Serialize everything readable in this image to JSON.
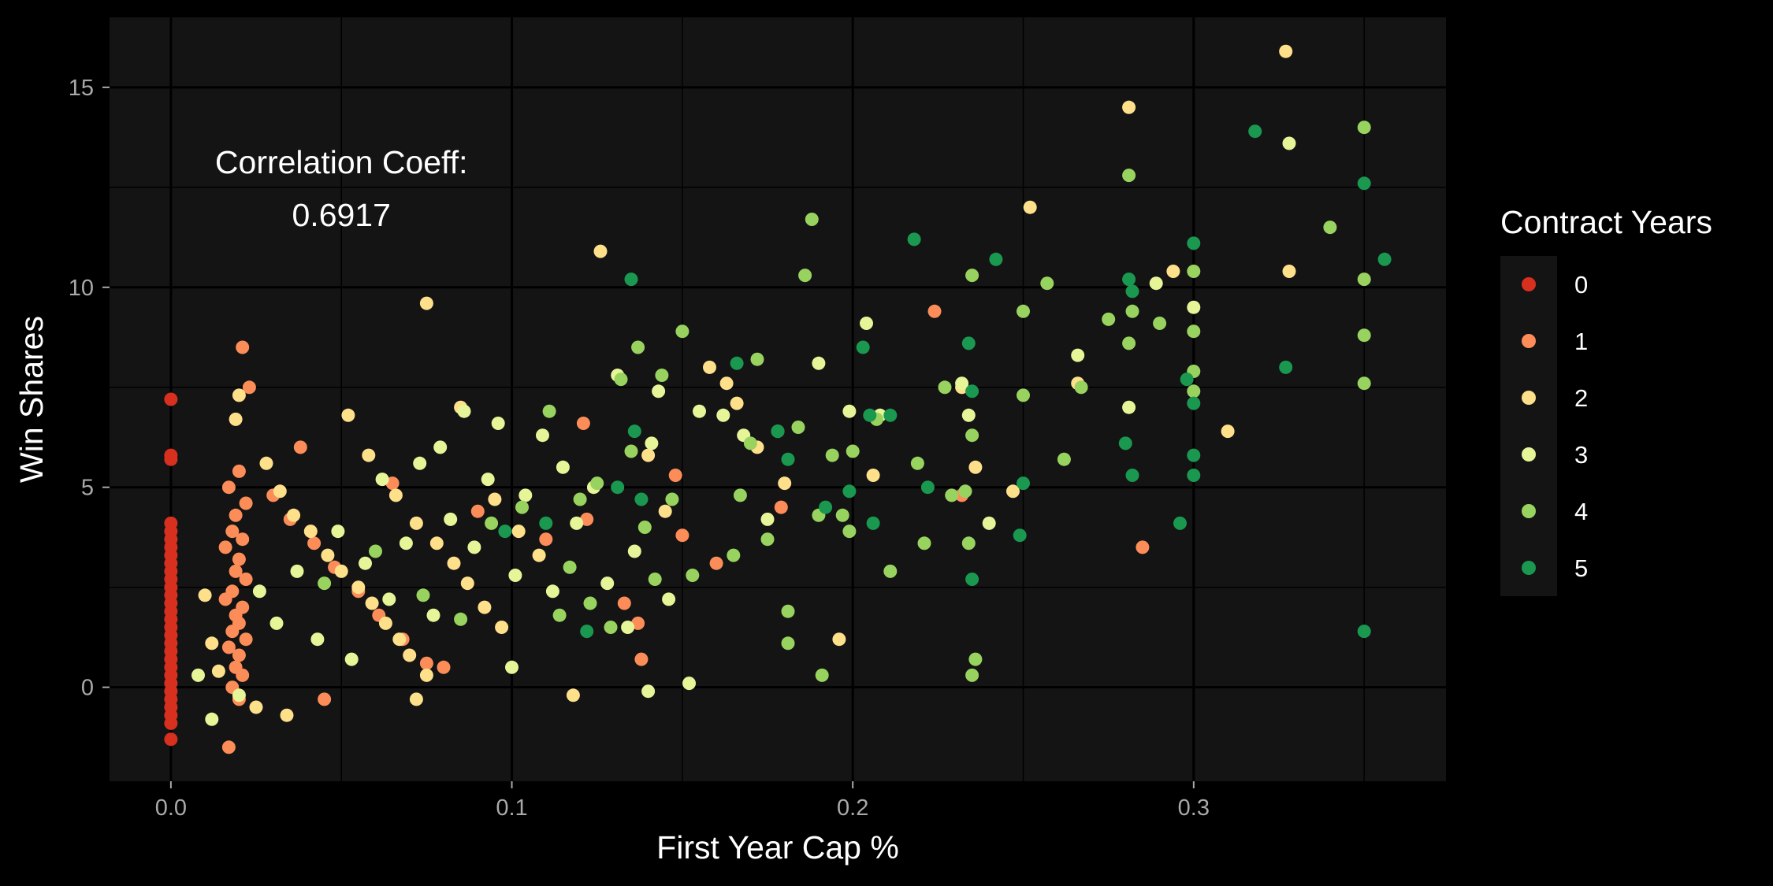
{
  "chart_data": {
    "type": "scatter",
    "title": "",
    "xlabel": "First Year Cap %",
    "ylabel": "Win Shares",
    "xlim": [
      -0.018,
      0.374
    ],
    "ylim": [
      -2.35,
      16.75
    ],
    "x_ticks": [
      0.0,
      0.1,
      0.2,
      0.3
    ],
    "x_tick_labels": [
      "0.0",
      "0.1",
      "0.2",
      "0.3"
    ],
    "y_ticks": [
      0,
      5,
      10,
      15
    ],
    "y_tick_labels": [
      "0",
      "5",
      "10",
      "15"
    ],
    "grid": true,
    "annotation": {
      "line1": "Correlation Coeff:",
      "line2": "0.6917",
      "x": 0.05,
      "y": 12.4
    },
    "legend": {
      "title": "Contract Years",
      "position": "right",
      "entries": [
        "0",
        "1",
        "2",
        "3",
        "4",
        "5"
      ]
    },
    "colors": {
      "panel_bg": "#141414",
      "page_bg": "#000000",
      "grid": "#000000",
      "0": "#d7301f",
      "1": "#fc8d59",
      "2": "#fee08b",
      "3": "#e6f598",
      "4": "#99d35f",
      "5": "#1a9850"
    },
    "series": [
      {
        "name": "0",
        "points": [
          [
            0,
            7.2
          ],
          [
            0,
            5.8
          ],
          [
            0,
            5.7
          ],
          [
            0,
            4.1
          ],
          [
            0,
            3.9
          ],
          [
            0,
            3.7
          ],
          [
            0,
            3.5
          ],
          [
            0,
            3.3
          ],
          [
            0,
            3.1
          ],
          [
            0,
            2.9
          ],
          [
            0,
            2.7
          ],
          [
            0,
            2.5
          ],
          [
            0,
            2.3
          ],
          [
            0,
            2.1
          ],
          [
            0,
            1.9
          ],
          [
            0,
            1.7
          ],
          [
            0,
            1.5
          ],
          [
            0,
            1.3
          ],
          [
            0,
            1.1
          ],
          [
            0,
            0.9
          ],
          [
            0,
            0.7
          ],
          [
            0,
            0.5
          ],
          [
            0,
            0.3
          ],
          [
            0,
            0.1
          ],
          [
            0,
            -0.1
          ],
          [
            0,
            -0.3
          ],
          [
            0,
            -0.5
          ],
          [
            0,
            -0.7
          ],
          [
            0,
            -0.9
          ],
          [
            0,
            -1.3
          ]
        ]
      },
      {
        "name": "1",
        "points": [
          [
            0.021,
            8.5
          ],
          [
            0.023,
            7.5
          ],
          [
            0.02,
            5.4
          ],
          [
            0.017,
            5.0
          ],
          [
            0.022,
            4.6
          ],
          [
            0.019,
            4.3
          ],
          [
            0.018,
            3.9
          ],
          [
            0.021,
            3.7
          ],
          [
            0.016,
            3.5
          ],
          [
            0.02,
            3.2
          ],
          [
            0.019,
            2.9
          ],
          [
            0.022,
            2.7
          ],
          [
            0.018,
            2.4
          ],
          [
            0.016,
            2.2
          ],
          [
            0.021,
            2.0
          ],
          [
            0.019,
            1.8
          ],
          [
            0.02,
            1.6
          ],
          [
            0.018,
            1.4
          ],
          [
            0.022,
            1.2
          ],
          [
            0.017,
            1.0
          ],
          [
            0.02,
            0.8
          ],
          [
            0.019,
            0.5
          ],
          [
            0.021,
            0.3
          ],
          [
            0.018,
            0.0
          ],
          [
            0.02,
            -0.3
          ],
          [
            0.017,
            -1.5
          ],
          [
            0.03,
            4.8
          ],
          [
            0.035,
            4.2
          ],
          [
            0.042,
            3.6
          ],
          [
            0.048,
            3.0
          ],
          [
            0.055,
            2.4
          ],
          [
            0.061,
            1.8
          ],
          [
            0.068,
            1.2
          ],
          [
            0.075,
            0.6
          ],
          [
            0.08,
            0.5
          ],
          [
            0.045,
            -0.3
          ],
          [
            0.038,
            6.0
          ],
          [
            0.065,
            5.1
          ],
          [
            0.09,
            4.4
          ],
          [
            0.11,
            3.7
          ],
          [
            0.122,
            4.2
          ],
          [
            0.121,
            6.6
          ],
          [
            0.133,
            2.1
          ],
          [
            0.137,
            1.6
          ],
          [
            0.138,
            0.7
          ],
          [
            0.148,
            5.3
          ],
          [
            0.15,
            3.8
          ],
          [
            0.16,
            3.1
          ],
          [
            0.179,
            4.5
          ],
          [
            0.224,
            9.4
          ],
          [
            0.232,
            4.8
          ],
          [
            0.285,
            3.5
          ]
        ]
      },
      {
        "name": "2",
        "points": [
          [
            0.02,
            7.3
          ],
          [
            0.019,
            6.7
          ],
          [
            0.028,
            5.6
          ],
          [
            0.032,
            4.9
          ],
          [
            0.036,
            4.3
          ],
          [
            0.041,
            3.9
          ],
          [
            0.046,
            3.3
          ],
          [
            0.05,
            2.9
          ],
          [
            0.055,
            2.5
          ],
          [
            0.059,
            2.1
          ],
          [
            0.063,
            1.6
          ],
          [
            0.067,
            1.2
          ],
          [
            0.07,
            0.8
          ],
          [
            0.075,
            0.3
          ],
          [
            0.072,
            -0.3
          ],
          [
            0.034,
            -0.7
          ],
          [
            0.025,
            -0.5
          ],
          [
            0.052,
            6.8
          ],
          [
            0.058,
            5.8
          ],
          [
            0.066,
            4.8
          ],
          [
            0.072,
            4.1
          ],
          [
            0.078,
            3.6
          ],
          [
            0.083,
            3.1
          ],
          [
            0.087,
            2.6
          ],
          [
            0.092,
            2.0
          ],
          [
            0.097,
            1.5
          ],
          [
            0.085,
            7.0
          ],
          [
            0.075,
            9.6
          ],
          [
            0.095,
            4.7
          ],
          [
            0.102,
            3.9
          ],
          [
            0.108,
            3.3
          ],
          [
            0.118,
            -0.2
          ],
          [
            0.126,
            10.9
          ],
          [
            0.14,
            5.8
          ],
          [
            0.145,
            4.4
          ],
          [
            0.158,
            8.0
          ],
          [
            0.163,
            7.6
          ],
          [
            0.166,
            7.1
          ],
          [
            0.172,
            6.0
          ],
          [
            0.18,
            5.1
          ],
          [
            0.196,
            1.2
          ],
          [
            0.206,
            5.3
          ],
          [
            0.232,
            7.5
          ],
          [
            0.236,
            5.5
          ],
          [
            0.247,
            4.9
          ],
          [
            0.252,
            12.0
          ],
          [
            0.266,
            7.6
          ],
          [
            0.281,
            14.5
          ],
          [
            0.294,
            10.4
          ],
          [
            0.31,
            6.4
          ],
          [
            0.327,
            15.9
          ],
          [
            0.328,
            10.4
          ],
          [
            0.01,
            2.3
          ],
          [
            0.012,
            1.1
          ],
          [
            0.014,
            0.4
          ]
        ]
      },
      {
        "name": "3",
        "points": [
          [
            0.008,
            0.3
          ],
          [
            0.012,
            -0.8
          ],
          [
            0.026,
            2.4
          ],
          [
            0.031,
            1.6
          ],
          [
            0.037,
            2.9
          ],
          [
            0.043,
            1.2
          ],
          [
            0.049,
            3.9
          ],
          [
            0.053,
            0.7
          ],
          [
            0.057,
            3.1
          ],
          [
            0.062,
            5.2
          ],
          [
            0.064,
            2.2
          ],
          [
            0.069,
            3.6
          ],
          [
            0.073,
            5.6
          ],
          [
            0.077,
            1.8
          ],
          [
            0.079,
            6.0
          ],
          [
            0.082,
            4.2
          ],
          [
            0.086,
            6.9
          ],
          [
            0.089,
            3.5
          ],
          [
            0.093,
            5.2
          ],
          [
            0.096,
            6.6
          ],
          [
            0.1,
            0.5
          ],
          [
            0.101,
            2.8
          ],
          [
            0.104,
            4.8
          ],
          [
            0.109,
            6.3
          ],
          [
            0.112,
            2.4
          ],
          [
            0.115,
            5.5
          ],
          [
            0.119,
            4.1
          ],
          [
            0.124,
            5.0
          ],
          [
            0.128,
            2.6
          ],
          [
            0.131,
            7.8
          ],
          [
            0.134,
            1.5
          ],
          [
            0.136,
            3.4
          ],
          [
            0.141,
            6.1
          ],
          [
            0.143,
            7.4
          ],
          [
            0.146,
            2.2
          ],
          [
            0.152,
            0.1
          ],
          [
            0.155,
            6.9
          ],
          [
            0.162,
            6.8
          ],
          [
            0.168,
            6.3
          ],
          [
            0.175,
            4.2
          ],
          [
            0.19,
            8.1
          ],
          [
            0.199,
            6.9
          ],
          [
            0.204,
            9.1
          ],
          [
            0.208,
            6.8
          ],
          [
            0.232,
            7.6
          ],
          [
            0.234,
            6.8
          ],
          [
            0.24,
            4.1
          ],
          [
            0.266,
            8.3
          ],
          [
            0.281,
            7.0
          ],
          [
            0.289,
            10.1
          ],
          [
            0.3,
            9.5
          ],
          [
            0.328,
            13.6
          ],
          [
            0.14,
            -0.1
          ],
          [
            0.02,
            -0.2
          ]
        ]
      },
      {
        "name": "4",
        "points": [
          [
            0.045,
            2.6
          ],
          [
            0.06,
            3.4
          ],
          [
            0.074,
            2.3
          ],
          [
            0.085,
            1.7
          ],
          [
            0.094,
            4.1
          ],
          [
            0.103,
            4.5
          ],
          [
            0.111,
            6.9
          ],
          [
            0.114,
            1.8
          ],
          [
            0.117,
            3.0
          ],
          [
            0.12,
            4.7
          ],
          [
            0.123,
            2.1
          ],
          [
            0.125,
            5.1
          ],
          [
            0.129,
            1.5
          ],
          [
            0.132,
            7.7
          ],
          [
            0.135,
            5.9
          ],
          [
            0.137,
            8.5
          ],
          [
            0.139,
            4.0
          ],
          [
            0.142,
            2.7
          ],
          [
            0.144,
            7.8
          ],
          [
            0.147,
            4.7
          ],
          [
            0.15,
            8.9
          ],
          [
            0.153,
            2.8
          ],
          [
            0.165,
            3.3
          ],
          [
            0.167,
            4.8
          ],
          [
            0.17,
            6.1
          ],
          [
            0.172,
            8.2
          ],
          [
            0.175,
            3.7
          ],
          [
            0.178,
            6.4
          ],
          [
            0.181,
            1.9
          ],
          [
            0.181,
            1.1
          ],
          [
            0.184,
            6.5
          ],
          [
            0.186,
            10.3
          ],
          [
            0.188,
            11.7
          ],
          [
            0.19,
            4.3
          ],
          [
            0.191,
            0.3
          ],
          [
            0.194,
            5.8
          ],
          [
            0.197,
            4.3
          ],
          [
            0.199,
            3.9
          ],
          [
            0.2,
            5.9
          ],
          [
            0.207,
            6.7
          ],
          [
            0.211,
            2.9
          ],
          [
            0.219,
            5.6
          ],
          [
            0.221,
            3.6
          ],
          [
            0.227,
            7.5
          ],
          [
            0.229,
            4.8
          ],
          [
            0.233,
            4.9
          ],
          [
            0.234,
            3.6
          ],
          [
            0.235,
            10.3
          ],
          [
            0.235,
            6.3
          ],
          [
            0.236,
            0.7
          ],
          [
            0.235,
            0.3
          ],
          [
            0.25,
            9.4
          ],
          [
            0.25,
            7.3
          ],
          [
            0.257,
            10.1
          ],
          [
            0.262,
            5.7
          ],
          [
            0.267,
            7.5
          ],
          [
            0.275,
            9.2
          ],
          [
            0.281,
            8.6
          ],
          [
            0.281,
            12.8
          ],
          [
            0.282,
            9.4
          ],
          [
            0.29,
            9.1
          ],
          [
            0.3,
            10.4
          ],
          [
            0.3,
            8.9
          ],
          [
            0.3,
            7.9
          ],
          [
            0.3,
            7.4
          ],
          [
            0.34,
            11.5
          ],
          [
            0.35,
            14.0
          ],
          [
            0.35,
            10.2
          ],
          [
            0.35,
            8.8
          ],
          [
            0.35,
            7.6
          ]
        ]
      },
      {
        "name": "5",
        "points": [
          [
            0.098,
            3.9
          ],
          [
            0.11,
            4.1
          ],
          [
            0.122,
            1.4
          ],
          [
            0.131,
            5.0
          ],
          [
            0.135,
            10.2
          ],
          [
            0.136,
            6.4
          ],
          [
            0.138,
            4.7
          ],
          [
            0.166,
            8.1
          ],
          [
            0.178,
            6.4
          ],
          [
            0.181,
            5.7
          ],
          [
            0.192,
            4.5
          ],
          [
            0.199,
            4.9
          ],
          [
            0.203,
            8.5
          ],
          [
            0.205,
            6.8
          ],
          [
            0.206,
            4.1
          ],
          [
            0.211,
            6.8
          ],
          [
            0.218,
            11.2
          ],
          [
            0.222,
            5.0
          ],
          [
            0.234,
            8.6
          ],
          [
            0.235,
            7.4
          ],
          [
            0.235,
            2.7
          ],
          [
            0.242,
            10.7
          ],
          [
            0.249,
            3.8
          ],
          [
            0.25,
            5.1
          ],
          [
            0.28,
            6.1
          ],
          [
            0.281,
            10.2
          ],
          [
            0.282,
            9.9
          ],
          [
            0.282,
            5.3
          ],
          [
            0.296,
            4.1
          ],
          [
            0.298,
            7.7
          ],
          [
            0.3,
            11.1
          ],
          [
            0.3,
            7.1
          ],
          [
            0.3,
            5.8
          ],
          [
            0.3,
            5.3
          ],
          [
            0.318,
            13.9
          ],
          [
            0.327,
            8.0
          ],
          [
            0.35,
            12.6
          ],
          [
            0.35,
            1.4
          ],
          [
            0.356,
            10.7
          ]
        ]
      }
    ]
  }
}
